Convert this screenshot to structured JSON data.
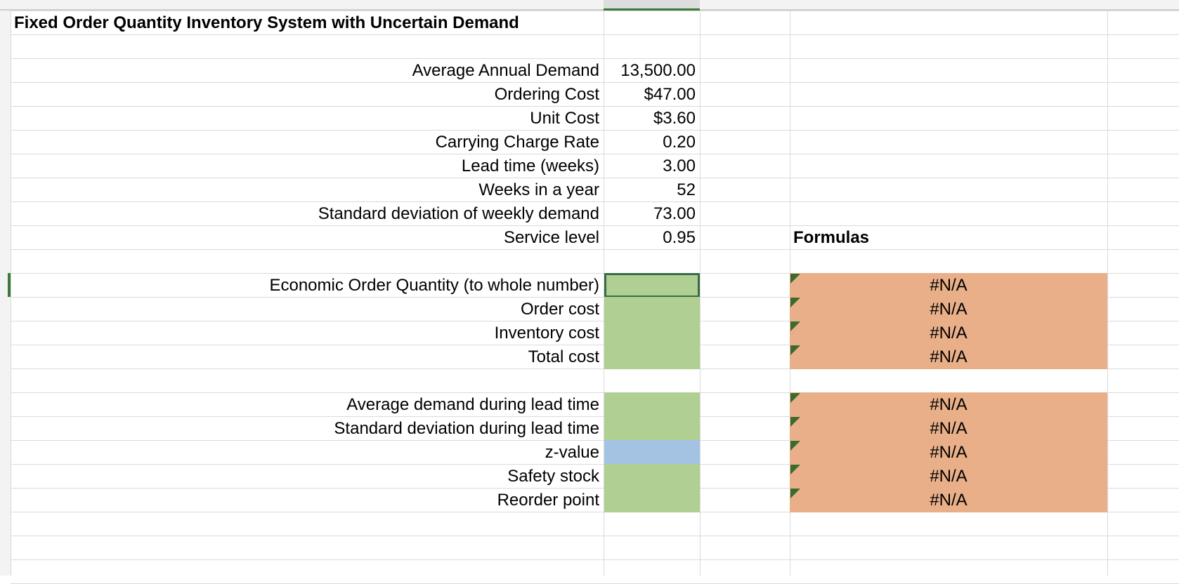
{
  "title": "Fixed Order Quantity Inventory System with Uncertain Demand",
  "inputs": [
    {
      "label": "Average Annual Demand",
      "value": "13,500.00"
    },
    {
      "label": "Ordering Cost",
      "value": "$47.00"
    },
    {
      "label": "Unit Cost",
      "value": "$3.60"
    },
    {
      "label": "Carrying Charge Rate",
      "value": "0.20"
    },
    {
      "label": "Lead time (weeks)",
      "value": "3.00"
    },
    {
      "label": "Weeks in a year",
      "value": "52"
    },
    {
      "label": "Standard deviation of weekly demand",
      "value": "73.00"
    },
    {
      "label": "Service level",
      "value": "0.95"
    }
  ],
  "formulas_heading": "Formulas",
  "outputs": [
    [
      {
        "label": "Economic Order Quantity (to whole number)",
        "fill": "#b0cf93",
        "formula": "#N/A"
      },
      {
        "label": "Order cost",
        "fill": "#b0cf93",
        "formula": "#N/A"
      },
      {
        "label": "Inventory cost",
        "fill": "#b0cf93",
        "formula": "#N/A"
      },
      {
        "label": "Total cost",
        "fill": "#b0cf93",
        "formula": "#N/A"
      }
    ],
    [
      {
        "label": "Average demand during lead time",
        "fill": "#b0cf93",
        "formula": "#N/A"
      },
      {
        "label": "Standard deviation during lead time",
        "fill": "#b0cf93",
        "formula": "#N/A"
      },
      {
        "label": "z-value",
        "fill": "#a4c2e3",
        "formula": "#N/A"
      },
      {
        "label": "Safety stock",
        "fill": "#b0cf93",
        "formula": "#N/A"
      },
      {
        "label": "Reorder point",
        "fill": "#b0cf93",
        "formula": "#N/A"
      }
    ]
  ]
}
